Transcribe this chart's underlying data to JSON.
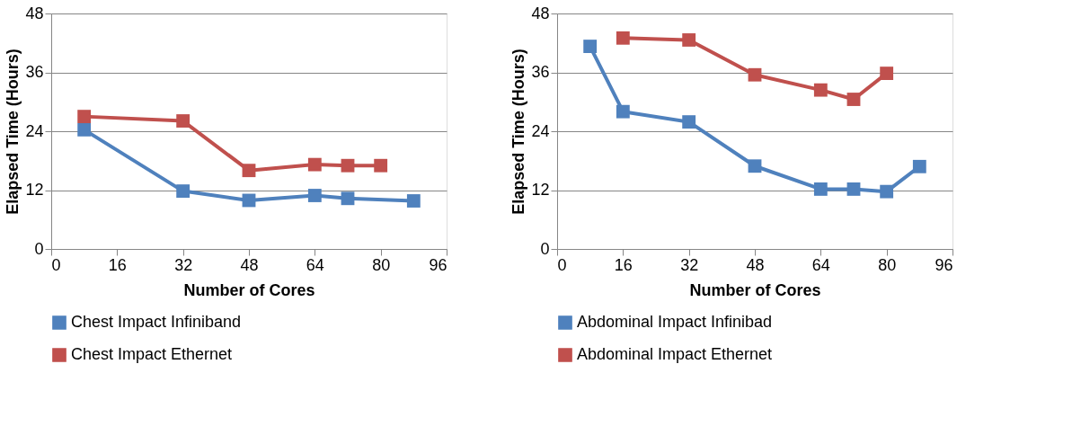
{
  "chart_data": [
    {
      "type": "line",
      "xlabel": "Number of Cores",
      "ylabel": "Elapsed Time (Hours)",
      "xlim": [
        0,
        96
      ],
      "xticks": [
        0,
        16,
        32,
        48,
        64,
        80,
        96
      ],
      "ylim": [
        0,
        48
      ],
      "yticks": [
        0,
        12,
        24,
        36,
        48
      ],
      "grid": "y",
      "legend": "bottom",
      "marker": "square",
      "line_style": "solid",
      "series": [
        {
          "name": "Chest Impact Infiniband",
          "color": "#4f81bd",
          "x": [
            8,
            32,
            48,
            64,
            72,
            88
          ],
          "values": [
            24.3,
            11.8,
            9.9,
            10.9,
            10.3,
            9.8
          ]
        },
        {
          "name": "Chest Impact Ethernet",
          "color": "#c0504d",
          "x": [
            8,
            32,
            48,
            64,
            72,
            80
          ],
          "values": [
            27.0,
            26.1,
            16.0,
            17.2,
            17.0,
            17.0
          ]
        }
      ]
    },
    {
      "type": "line",
      "xlabel": "Number of Cores",
      "ylabel": "Elapsed Time (Hours)",
      "xlim": [
        0,
        96
      ],
      "xticks": [
        0,
        16,
        32,
        48,
        64,
        80,
        96
      ],
      "ylim": [
        0,
        48
      ],
      "yticks": [
        0,
        12,
        24,
        36,
        48
      ],
      "grid": "y",
      "legend": "bottom",
      "marker": "square",
      "line_style": "solid",
      "series": [
        {
          "name": "Abdominal Impact Infinibad",
          "color": "#4f81bd",
          "x": [
            8,
            16,
            32,
            48,
            64,
            72,
            80,
            88
          ],
          "values": [
            41.3,
            28.0,
            25.9,
            16.9,
            12.2,
            12.2,
            11.7,
            16.8
          ]
        },
        {
          "name": "Abdominal Impact Ethernet",
          "color": "#c0504d",
          "x": [
            16,
            32,
            48,
            64,
            72,
            80
          ],
          "values": [
            43.0,
            42.6,
            35.5,
            32.4,
            30.5,
            35.8
          ]
        }
      ]
    }
  ]
}
